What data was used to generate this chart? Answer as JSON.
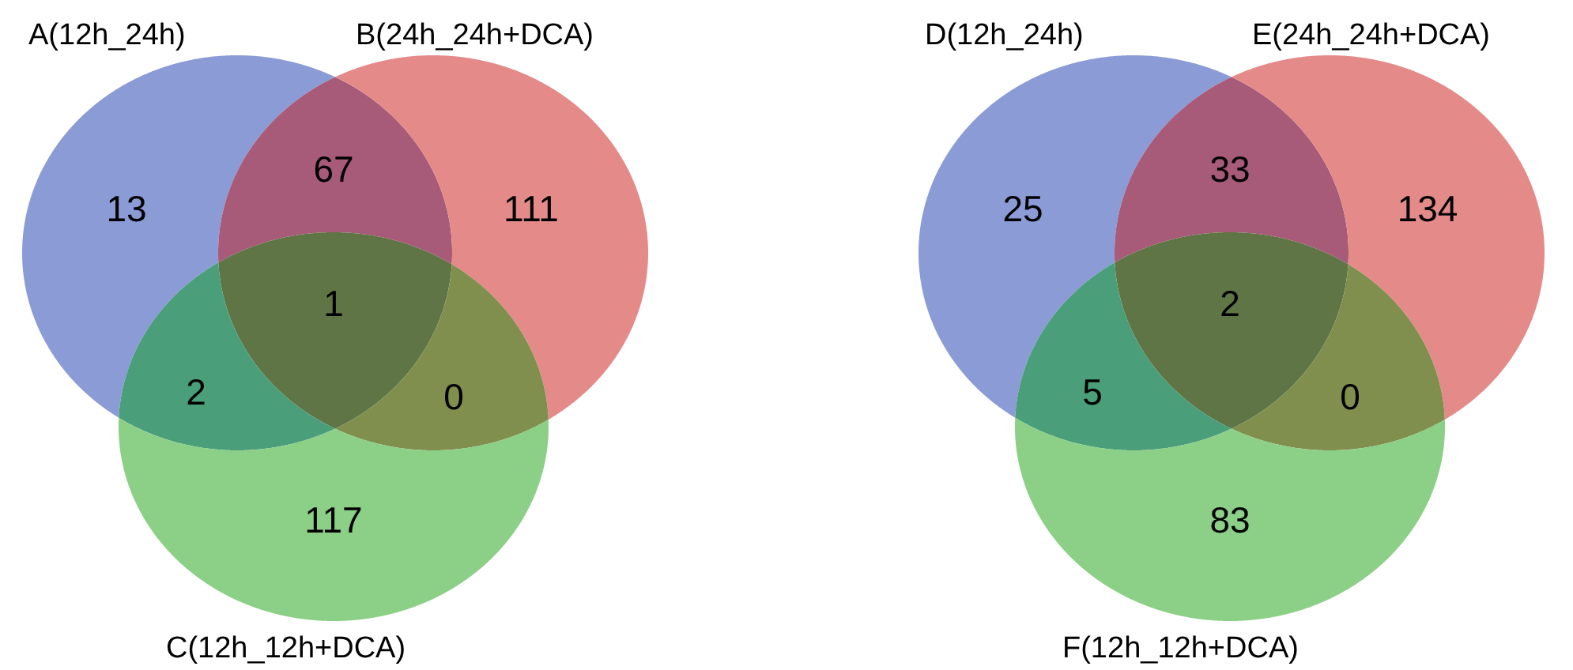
{
  "chart_data": [
    {
      "type": "other",
      "annotations": [
        "A(12h_24h)",
        "B(24h_24h+DCA)",
        "C(12h_12h+DCA)"
      ],
      "categories": [
        null,
        null,
        null,
        null,
        null,
        null,
        null
      ],
      "values": [
        13,
        67,
        111,
        1,
        2,
        0,
        117
      ],
      "colors": [
        "#8b9bd6",
        "#a85b78",
        "#e48b89",
        "#5f7545",
        "#4a9e7a",
        "#808f4e",
        "#8ccf87"
      ],
      "data_labels": true
    },
    {
      "type": "other",
      "annotations": [
        "D(12h_24h)",
        "E(24h_24h+DCA)",
        "F(12h_12h+DCA)"
      ],
      "categories": [
        null,
        null,
        null,
        null,
        null,
        null,
        null
      ],
      "values": [
        25,
        33,
        134,
        2,
        5,
        0,
        83
      ],
      "colors": [
        "#8b9bd6",
        "#a85b78",
        "#e48b89",
        "#5f7545",
        "#4a9e7a",
        "#808f4e",
        "#8ccf87"
      ],
      "data_labels": true
    }
  ]
}
